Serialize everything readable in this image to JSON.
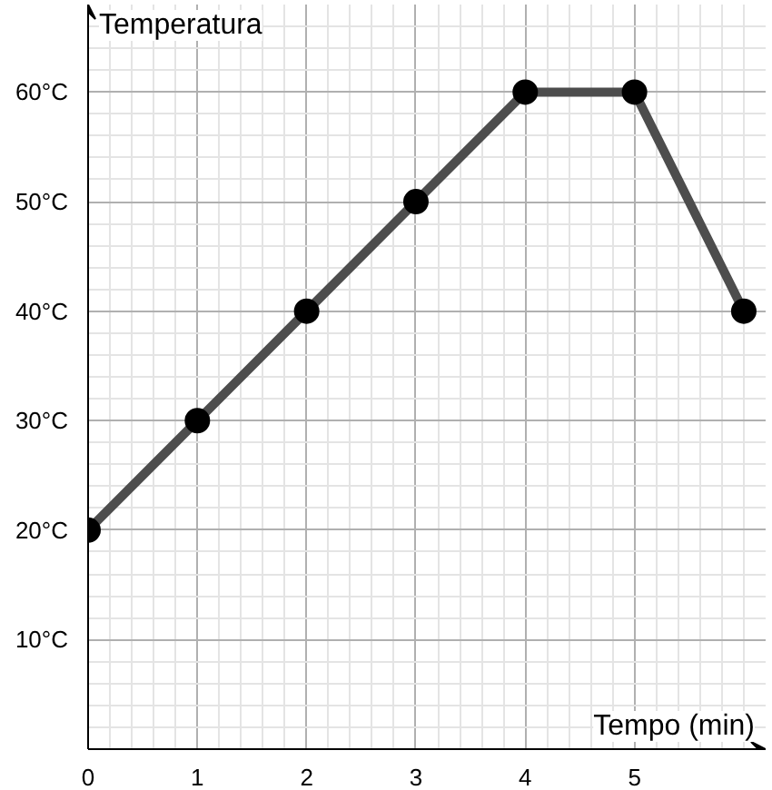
{
  "chart_data": {
    "type": "line",
    "xlabel": "Tempo (min)",
    "ylabel": "Temperatura",
    "x": [
      0,
      1,
      2,
      3,
      4,
      5,
      6
    ],
    "series": [
      {
        "color": "#4d4d4d",
        "values": [
          20,
          30,
          40,
          50,
          60,
          60,
          40
        ]
      }
    ],
    "xlim": [
      0,
      6.2
    ],
    "ylim": [
      0,
      68
    ],
    "xticks": [
      0,
      1,
      2,
      3,
      4,
      5
    ],
    "yticks": [
      {
        "value": 10,
        "label": "10°C"
      },
      {
        "value": 20,
        "label": "20°C"
      },
      {
        "value": 30,
        "label": "30°C"
      },
      {
        "value": 40,
        "label": "40°C"
      },
      {
        "value": 50,
        "label": "50°C"
      },
      {
        "value": 60,
        "label": "60°C"
      }
    ],
    "grid": true,
    "marker": "circle",
    "line_style": "solid"
  }
}
